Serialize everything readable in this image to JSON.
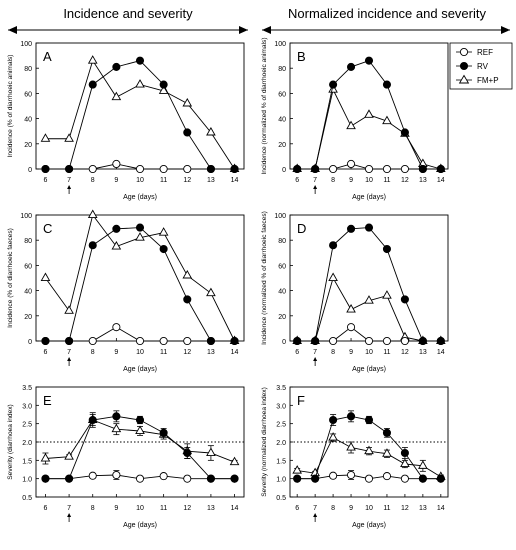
{
  "headers": {
    "left": "Incidence and severity",
    "right": "Normalized incidence and severity"
  },
  "legend": {
    "placement": "top-right",
    "entries": [
      {
        "label": "REF",
        "marker": "open-circle"
      },
      {
        "label": "RV",
        "marker": "filled-circle"
      },
      {
        "label": "FM+P",
        "marker": "open-triangle"
      }
    ]
  },
  "chart_data": [
    {
      "panel": "A",
      "type": "line",
      "ylabel": "Incidence (% of diarrhoeic animals)",
      "xlabel": "Age (days)",
      "x": [
        6,
        7,
        8,
        9,
        10,
        11,
        12,
        13,
        14
      ],
      "ylim": [
        0,
        100
      ],
      "yticks": [
        0,
        20,
        40,
        60,
        80,
        100
      ],
      "arrow_at": 7,
      "series": [
        {
          "name": "REF",
          "x": [
            6,
            7,
            8,
            9,
            10,
            11,
            12,
            13,
            14
          ],
          "values": [
            0,
            0,
            0,
            4,
            0,
            0,
            0,
            0,
            0
          ]
        },
        {
          "name": "RV",
          "x": [
            6,
            7,
            8,
            9,
            10,
            11,
            12,
            13,
            14
          ],
          "values": [
            0,
            0,
            67,
            81,
            86,
            67,
            29,
            0,
            0
          ]
        },
        {
          "name": "FM+P",
          "x": [
            6,
            7,
            8,
            9,
            10,
            11,
            12,
            13,
            14
          ],
          "values": [
            24,
            24,
            86,
            57,
            67,
            62,
            52,
            29,
            0
          ]
        }
      ]
    },
    {
      "panel": "B",
      "type": "line",
      "ylabel": "Incidence (normalized % of diarrhoeic animals)",
      "xlabel": "Age (days)",
      "x": [
        6,
        7,
        8,
        9,
        10,
        11,
        12,
        13,
        14
      ],
      "ylim": [
        0,
        100
      ],
      "yticks": [
        0,
        20,
        40,
        60,
        80,
        100
      ],
      "arrow_at": 7,
      "series": [
        {
          "name": "REF",
          "x": [
            6,
            7,
            8,
            9,
            10,
            11,
            12,
            13,
            14
          ],
          "values": [
            0,
            0,
            0,
            4,
            0,
            0,
            0,
            0,
            0
          ]
        },
        {
          "name": "RV",
          "x": [
            6,
            7,
            8,
            9,
            10,
            11,
            12,
            13,
            14
          ],
          "values": [
            0,
            0,
            67,
            81,
            86,
            67,
            29,
            0,
            0
          ]
        },
        {
          "name": "FM+P",
          "x": [
            6,
            7,
            8,
            9,
            10,
            11,
            12,
            13,
            14
          ],
          "values": [
            0,
            0,
            63,
            34,
            43,
            38,
            28,
            4,
            0
          ]
        }
      ]
    },
    {
      "panel": "C",
      "type": "line",
      "ylabel": "Incidence (% of diarrhoeic faeces)",
      "xlabel": "Age (days)",
      "x": [
        6,
        7,
        8,
        9,
        10,
        11,
        12,
        13,
        14
      ],
      "ylim": [
        0,
        100
      ],
      "yticks": [
        0,
        20,
        40,
        60,
        80,
        100
      ],
      "arrow_at": 7,
      "series": [
        {
          "name": "REF",
          "x": [
            6,
            7,
            8,
            9,
            10,
            11,
            12,
            13,
            14
          ],
          "values": [
            0,
            0,
            0,
            11,
            0,
            0,
            0,
            0,
            0
          ]
        },
        {
          "name": "RV",
          "x": [
            6,
            7,
            8,
            9,
            10,
            11,
            12,
            13,
            14
          ],
          "values": [
            0,
            0,
            76,
            89,
            90,
            73,
            33,
            0,
            0
          ]
        },
        {
          "name": "FM+P",
          "x": [
            6,
            7,
            8,
            9,
            10,
            11,
            12,
            13,
            14
          ],
          "values": [
            50,
            24,
            100,
            75,
            82,
            86,
            52,
            38,
            0
          ]
        }
      ]
    },
    {
      "panel": "D",
      "type": "line",
      "ylabel": "Incidence (normalized % of diarrhoeic faeces)",
      "xlabel": "Age (days)",
      "x": [
        6,
        7,
        8,
        9,
        10,
        11,
        12,
        13,
        14
      ],
      "ylim": [
        0,
        100
      ],
      "yticks": [
        0,
        20,
        40,
        60,
        80,
        100
      ],
      "arrow_at": 7,
      "series": [
        {
          "name": "REF",
          "x": [
            6,
            7,
            8,
            9,
            10,
            11,
            12,
            13,
            14
          ],
          "values": [
            0,
            0,
            0,
            11,
            0,
            0,
            0,
            0,
            0
          ]
        },
        {
          "name": "RV",
          "x": [
            6,
            7,
            8,
            9,
            10,
            11,
            12,
            13,
            14
          ],
          "values": [
            0,
            0,
            76,
            89,
            90,
            73,
            33,
            0,
            0
          ]
        },
        {
          "name": "FM+P",
          "x": [
            6,
            7,
            8,
            9,
            10,
            11,
            12,
            13,
            14
          ],
          "values": [
            0,
            0,
            50,
            25,
            32,
            36,
            3,
            0,
            0
          ]
        }
      ]
    },
    {
      "panel": "E",
      "type": "line",
      "ylabel": "Severity (diarrhoea index)",
      "xlabel": "Age (days)",
      "x": [
        6,
        7,
        8,
        9,
        10,
        11,
        12,
        13,
        14
      ],
      "ylim": [
        0.5,
        3.5
      ],
      "yticks": [
        0.5,
        1.0,
        1.5,
        2.0,
        2.5,
        3.0,
        3.5
      ],
      "ytick_labels": [
        "0.5",
        "1.0",
        "1.5",
        "2.0",
        "2.5",
        "3.0",
        "3.5"
      ],
      "arrow_at": 7,
      "reference_line": 2.0,
      "series": [
        {
          "name": "REF",
          "x": [
            6,
            7,
            8,
            9,
            10,
            11,
            12,
            13,
            14
          ],
          "values": [
            1.0,
            1.0,
            1.08,
            1.1,
            1.0,
            1.07,
            1.0,
            1.0,
            1.0
          ],
          "errors": [
            0,
            0,
            0.06,
            0.12,
            0,
            0.05,
            0,
            0,
            0
          ]
        },
        {
          "name": "RV",
          "x": [
            6,
            7,
            8,
            9,
            10,
            11,
            12,
            13,
            14
          ],
          "values": [
            1.0,
            1.0,
            2.6,
            2.7,
            2.6,
            2.25,
            1.7,
            1.0,
            1.0
          ],
          "errors": [
            0,
            0,
            0.15,
            0.15,
            0.1,
            0.12,
            0.15,
            0,
            0
          ]
        },
        {
          "name": "FM+P",
          "x": [
            6,
            7,
            8,
            9,
            10,
            11,
            12,
            13,
            14
          ],
          "values": [
            1.55,
            1.6,
            2.6,
            2.35,
            2.3,
            2.2,
            1.75,
            1.7,
            1.45
          ],
          "errors": [
            0.15,
            0.05,
            0.2,
            0.15,
            0.12,
            0.12,
            0.2,
            0.2,
            0.05
          ]
        }
      ]
    },
    {
      "panel": "F",
      "type": "line",
      "ylabel": "Severity (normalized diarrhoea index)",
      "xlabel": "Age (days)",
      "x": [
        6,
        7,
        8,
        9,
        10,
        11,
        12,
        13,
        14
      ],
      "ylim": [
        0.5,
        3.5
      ],
      "yticks": [
        0.5,
        1.0,
        1.5,
        2.0,
        2.5,
        3.0,
        3.5
      ],
      "ytick_labels": [
        "0.5",
        "1.0",
        "1.5",
        "2.0",
        "2.5",
        "3.0",
        "3.5"
      ],
      "arrow_at": 7,
      "reference_line": 2.0,
      "series": [
        {
          "name": "REF",
          "x": [
            6,
            7,
            8,
            9,
            10,
            11,
            12,
            13,
            14
          ],
          "values": [
            1.0,
            1.0,
            1.08,
            1.1,
            1.0,
            1.07,
            1.0,
            1.0,
            1.0
          ],
          "errors": [
            0,
            0,
            0.06,
            0.12,
            0,
            0.05,
            0,
            0,
            0
          ]
        },
        {
          "name": "RV",
          "x": [
            6,
            7,
            8,
            9,
            10,
            11,
            12,
            13,
            14
          ],
          "values": [
            1.0,
            1.0,
            2.6,
            2.7,
            2.6,
            2.25,
            1.7,
            1.0,
            1.0
          ],
          "errors": [
            0,
            0,
            0.15,
            0.15,
            0.1,
            0.12,
            0.15,
            0,
            0
          ]
        },
        {
          "name": "FM+P",
          "x": [
            6,
            7,
            8,
            9,
            10,
            11,
            12,
            13,
            14
          ],
          "values": [
            1.22,
            1.15,
            2.12,
            1.85,
            1.75,
            1.68,
            1.4,
            1.35,
            1.05
          ],
          "errors": [
            0.06,
            0.05,
            0.1,
            0.15,
            0.1,
            0.1,
            0.1,
            0.15,
            0.05
          ]
        }
      ]
    }
  ]
}
